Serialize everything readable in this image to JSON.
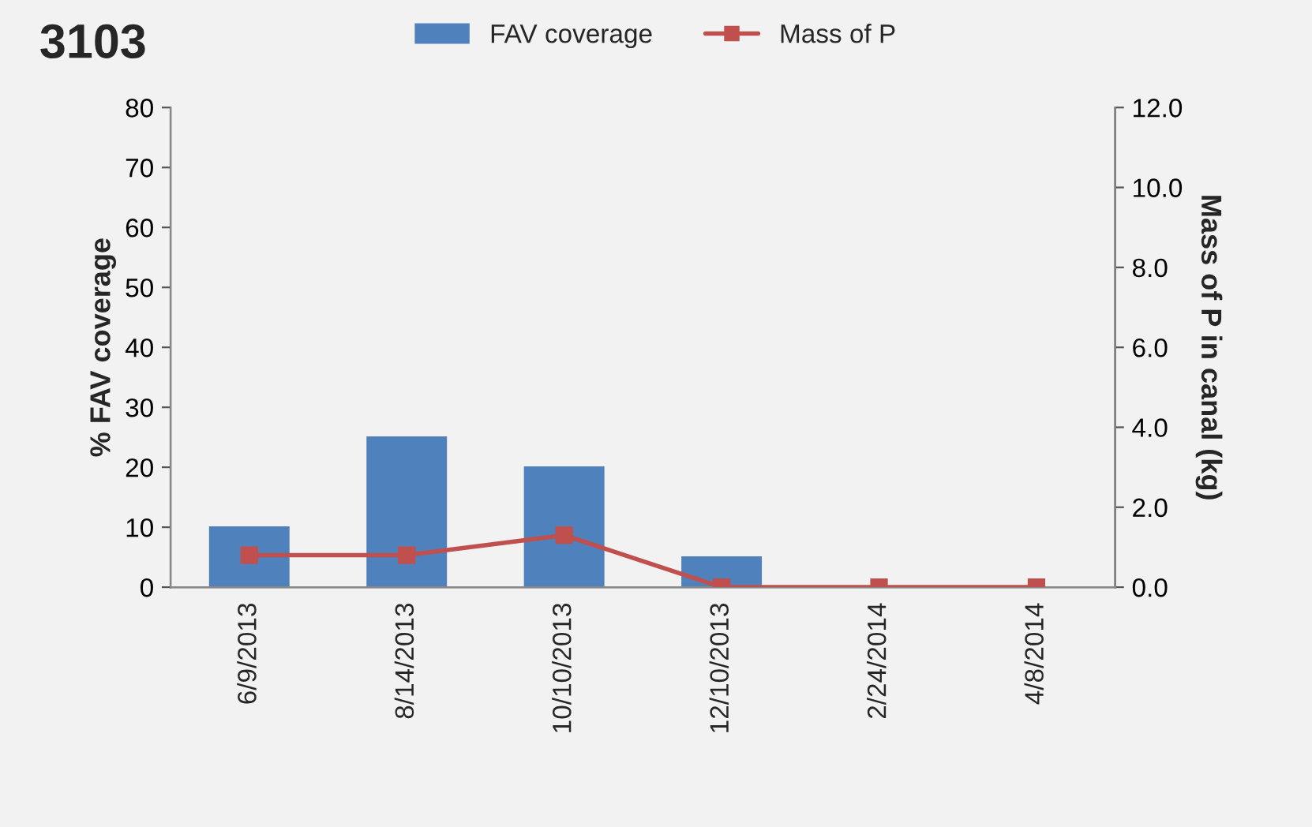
{
  "chart_data": {
    "type": "bar",
    "title": "3103",
    "categories": [
      "6/9/2013",
      "8/14/2013",
      "10/10/2013",
      "12/10/2013",
      "2/24/2014",
      "4/8/2014"
    ],
    "series": [
      {
        "name": "FAV coverage",
        "color": "#4f81bd",
        "values": [
          10,
          25,
          20,
          5,
          0,
          0
        ]
      },
      {
        "name": "Mass of P",
        "type": "line",
        "axis": "y2",
        "color": "#c0504d",
        "marker": "square",
        "values": [
          0.8,
          0.8,
          1.3,
          0.0,
          0.0,
          0.0
        ]
      }
    ],
    "ylabel": "% FAV coverage",
    "y2label": "Mass of P in canal (kg)",
    "ylim": [
      0,
      80
    ],
    "yticks": [
      0,
      10,
      20,
      30,
      40,
      50,
      60,
      70,
      80
    ],
    "y2lim": [
      0,
      12
    ],
    "y2ticks": [
      {
        "value": 0,
        "label": "0.0"
      },
      {
        "value": 2,
        "label": "2.0"
      },
      {
        "value": 4,
        "label": "4.0"
      },
      {
        "value": 6,
        "label": "6.0"
      },
      {
        "value": 8,
        "label": "8.0"
      },
      {
        "value": 10,
        "label": "10.0"
      },
      {
        "value": 12,
        "label": "12.0"
      }
    ],
    "grid": false,
    "legend": "top"
  }
}
